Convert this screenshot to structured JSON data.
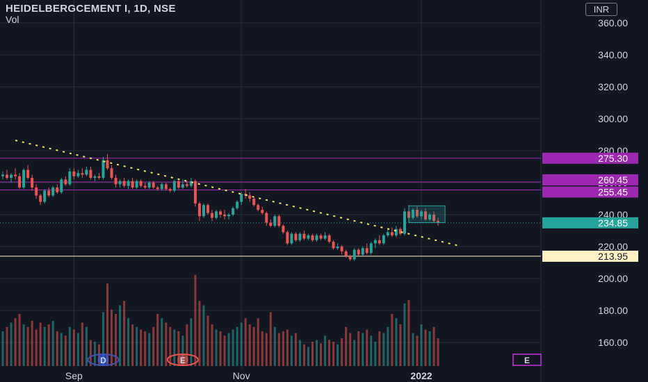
{
  "header": {
    "symbol_title": "HEIDELBERGCEMENT I, 1D, NSE",
    "volume_label": "Vol",
    "currency": "INR"
  },
  "colors": {
    "background": "#131722",
    "grid": "#2a2e39",
    "up": "#26a69a",
    "down": "#ef5350",
    "trendline": "#f5e663",
    "level_line": "#9c27b0",
    "support_line": "#fff3c4",
    "current_price": "#26a69a",
    "axis_text": "#d1d4dc"
  },
  "chart_data": {
    "type": "candlestick",
    "y_axis": {
      "ylim": [
        150,
        368
      ],
      "ticks": [
        "360.00",
        "340.00",
        "320.00",
        "300.00",
        "280.00",
        "260.00",
        "240.00",
        "220.00",
        "200.00",
        "180.00",
        "160.00"
      ]
    },
    "x_axis": {
      "tick_labels": [
        "Sep",
        "Nov",
        "2022"
      ]
    },
    "price_labels": [
      {
        "value": "275.30",
        "kind": "level"
      },
      {
        "value": "260.45",
        "kind": "level"
      },
      {
        "value": "255.45",
        "kind": "level"
      },
      {
        "value": "234.85",
        "kind": "current"
      },
      {
        "value": "213.95",
        "kind": "support"
      }
    ],
    "horizontal_lines": [
      275.3,
      260.45,
      255.45,
      213.95
    ],
    "current_price": 234.85,
    "trendline": {
      "from": {
        "bar": 3,
        "price": 286.5
      },
      "to": {
        "bar": 109,
        "price": 220.5
      }
    },
    "rectangle": {
      "from_bar": 97,
      "to_bar": 105,
      "top": 245.5,
      "bottom": 235.0
    },
    "event_markers": [
      {
        "label": "D",
        "bar": 24
      },
      {
        "label": "E",
        "bar": 43
      },
      {
        "label": "E",
        "bar": 110
      }
    ],
    "candles": [
      {
        "o": 264,
        "h": 267,
        "l": 262,
        "c": 265
      },
      {
        "o": 265,
        "h": 268,
        "l": 262,
        "c": 263
      },
      {
        "o": 263,
        "h": 266,
        "l": 260,
        "c": 265
      },
      {
        "o": 265,
        "h": 269,
        "l": 262,
        "c": 264
      },
      {
        "o": 264,
        "h": 266,
        "l": 256,
        "c": 257
      },
      {
        "o": 257,
        "h": 269,
        "l": 256,
        "c": 268
      },
      {
        "o": 268,
        "h": 271,
        "l": 262,
        "c": 263
      },
      {
        "o": 263,
        "h": 265,
        "l": 255,
        "c": 257
      },
      {
        "o": 257,
        "h": 259,
        "l": 250,
        "c": 252
      },
      {
        "o": 252,
        "h": 253,
        "l": 246,
        "c": 248
      },
      {
        "o": 248,
        "h": 256,
        "l": 247,
        "c": 255
      },
      {
        "o": 255,
        "h": 257,
        "l": 251,
        "c": 252
      },
      {
        "o": 252,
        "h": 258,
        "l": 251,
        "c": 257
      },
      {
        "o": 257,
        "h": 259,
        "l": 253,
        "c": 254
      },
      {
        "o": 254,
        "h": 263,
        "l": 253,
        "c": 262
      },
      {
        "o": 262,
        "h": 264,
        "l": 258,
        "c": 259
      },
      {
        "o": 259,
        "h": 269,
        "l": 258,
        "c": 267
      },
      {
        "o": 267,
        "h": 269,
        "l": 262,
        "c": 264
      },
      {
        "o": 264,
        "h": 268,
        "l": 263,
        "c": 266
      },
      {
        "o": 266,
        "h": 269,
        "l": 263,
        "c": 265
      },
      {
        "o": 265,
        "h": 270,
        "l": 264,
        "c": 268
      },
      {
        "o": 268,
        "h": 270,
        "l": 262,
        "c": 263
      },
      {
        "o": 263,
        "h": 265,
        "l": 261,
        "c": 264
      },
      {
        "o": 264,
        "h": 266,
        "l": 262,
        "c": 263
      },
      {
        "o": 263,
        "h": 276,
        "l": 262,
        "c": 274
      },
      {
        "o": 274,
        "h": 278,
        "l": 268,
        "c": 269
      },
      {
        "o": 269,
        "h": 271,
        "l": 262,
        "c": 263
      },
      {
        "o": 263,
        "h": 265,
        "l": 257,
        "c": 259
      },
      {
        "o": 259,
        "h": 262,
        "l": 257,
        "c": 261
      },
      {
        "o": 261,
        "h": 263,
        "l": 257,
        "c": 258
      },
      {
        "o": 258,
        "h": 262,
        "l": 256,
        "c": 261
      },
      {
        "o": 261,
        "h": 263,
        "l": 256,
        "c": 257
      },
      {
        "o": 257,
        "h": 262,
        "l": 256,
        "c": 261
      },
      {
        "o": 261,
        "h": 262,
        "l": 257,
        "c": 258
      },
      {
        "o": 258,
        "h": 260,
        "l": 256,
        "c": 257
      },
      {
        "o": 257,
        "h": 261,
        "l": 256,
        "c": 260
      },
      {
        "o": 260,
        "h": 261,
        "l": 256,
        "c": 257
      },
      {
        "o": 257,
        "h": 258,
        "l": 255,
        "c": 256
      },
      {
        "o": 256,
        "h": 260,
        "l": 255,
        "c": 259
      },
      {
        "o": 259,
        "h": 260,
        "l": 255,
        "c": 256
      },
      {
        "o": 256,
        "h": 257,
        "l": 254,
        "c": 255
      },
      {
        "o": 255,
        "h": 262,
        "l": 254,
        "c": 261
      },
      {
        "o": 261,
        "h": 262,
        "l": 256,
        "c": 257
      },
      {
        "o": 257,
        "h": 262,
        "l": 256,
        "c": 259
      },
      {
        "o": 259,
        "h": 261,
        "l": 257,
        "c": 258
      },
      {
        "o": 258,
        "h": 263,
        "l": 257,
        "c": 261
      },
      {
        "o": 261,
        "h": 262,
        "l": 245,
        "c": 247
      },
      {
        "o": 247,
        "h": 248,
        "l": 236,
        "c": 239
      },
      {
        "o": 239,
        "h": 247,
        "l": 238,
        "c": 246
      },
      {
        "o": 246,
        "h": 247,
        "l": 240,
        "c": 241
      },
      {
        "o": 241,
        "h": 243,
        "l": 236,
        "c": 238
      },
      {
        "o": 238,
        "h": 243,
        "l": 237,
        "c": 242
      },
      {
        "o": 242,
        "h": 243,
        "l": 238,
        "c": 240
      },
      {
        "o": 240,
        "h": 243,
        "l": 237,
        "c": 239
      },
      {
        "o": 239,
        "h": 241,
        "l": 237,
        "c": 240
      },
      {
        "o": 240,
        "h": 245,
        "l": 239,
        "c": 244
      },
      {
        "o": 244,
        "h": 249,
        "l": 243,
        "c": 248
      },
      {
        "o": 248,
        "h": 254,
        "l": 246,
        "c": 253
      },
      {
        "o": 253,
        "h": 256,
        "l": 250,
        "c": 252
      },
      {
        "o": 252,
        "h": 254,
        "l": 248,
        "c": 250
      },
      {
        "o": 250,
        "h": 251,
        "l": 245,
        "c": 246
      },
      {
        "o": 246,
        "h": 247,
        "l": 242,
        "c": 243
      },
      {
        "o": 243,
        "h": 245,
        "l": 240,
        "c": 241
      },
      {
        "o": 241,
        "h": 242,
        "l": 233,
        "c": 235
      },
      {
        "o": 235,
        "h": 237,
        "l": 232,
        "c": 233
      },
      {
        "o": 233,
        "h": 240,
        "l": 232,
        "c": 239
      },
      {
        "o": 239,
        "h": 240,
        "l": 232,
        "c": 233
      },
      {
        "o": 233,
        "h": 234,
        "l": 228,
        "c": 229
      },
      {
        "o": 229,
        "h": 230,
        "l": 221,
        "c": 222
      },
      {
        "o": 222,
        "h": 229,
        "l": 221,
        "c": 228
      },
      {
        "o": 228,
        "h": 229,
        "l": 223,
        "c": 224
      },
      {
        "o": 224,
        "h": 229,
        "l": 223,
        "c": 228
      },
      {
        "o": 228,
        "h": 230,
        "l": 224,
        "c": 225
      },
      {
        "o": 225,
        "h": 228,
        "l": 224,
        "c": 227
      },
      {
        "o": 227,
        "h": 228,
        "l": 223,
        "c": 224
      },
      {
        "o": 224,
        "h": 228,
        "l": 223,
        "c": 227
      },
      {
        "o": 227,
        "h": 228,
        "l": 224,
        "c": 225
      },
      {
        "o": 225,
        "h": 229,
        "l": 224,
        "c": 227
      },
      {
        "o": 227,
        "h": 228,
        "l": 222,
        "c": 223
      },
      {
        "o": 223,
        "h": 224,
        "l": 218,
        "c": 219
      },
      {
        "o": 219,
        "h": 222,
        "l": 218,
        "c": 220
      },
      {
        "o": 220,
        "h": 221,
        "l": 215,
        "c": 217
      },
      {
        "o": 217,
        "h": 218,
        "l": 213,
        "c": 214
      },
      {
        "o": 214,
        "h": 215,
        "l": 211,
        "c": 212
      },
      {
        "o": 212,
        "h": 219,
        "l": 211,
        "c": 218
      },
      {
        "o": 218,
        "h": 219,
        "l": 214,
        "c": 215
      },
      {
        "o": 215,
        "h": 220,
        "l": 214,
        "c": 219
      },
      {
        "o": 219,
        "h": 222,
        "l": 215,
        "c": 216
      },
      {
        "o": 216,
        "h": 223,
        "l": 215,
        "c": 222
      },
      {
        "o": 222,
        "h": 225,
        "l": 219,
        "c": 224
      },
      {
        "o": 224,
        "h": 227,
        "l": 221,
        "c": 222
      },
      {
        "o": 222,
        "h": 228,
        "l": 221,
        "c": 227
      },
      {
        "o": 227,
        "h": 231,
        "l": 226,
        "c": 229
      },
      {
        "o": 229,
        "h": 232,
        "l": 226,
        "c": 227
      },
      {
        "o": 227,
        "h": 233,
        "l": 226,
        "c": 231
      },
      {
        "o": 231,
        "h": 232,
        "l": 227,
        "c": 228
      },
      {
        "o": 228,
        "h": 244,
        "l": 227,
        "c": 242
      },
      {
        "o": 242,
        "h": 246,
        "l": 237,
        "c": 238
      },
      {
        "o": 238,
        "h": 244,
        "l": 237,
        "c": 243
      },
      {
        "o": 243,
        "h": 245,
        "l": 238,
        "c": 239
      },
      {
        "o": 239,
        "h": 243,
        "l": 237,
        "c": 242
      },
      {
        "o": 242,
        "h": 244,
        "l": 236,
        "c": 237
      },
      {
        "o": 237,
        "h": 241,
        "l": 236,
        "c": 240
      },
      {
        "o": 240,
        "h": 242,
        "l": 235,
        "c": 236
      },
      {
        "o": 236,
        "h": 238,
        "l": 233,
        "c": 234.85
      }
    ],
    "volumes": [
      40,
      45,
      50,
      55,
      60,
      48,
      45,
      52,
      42,
      50,
      45,
      48,
      52,
      40,
      38,
      35,
      45,
      42,
      38,
      50,
      45,
      30,
      28,
      25,
      62,
      95,
      65,
      60,
      70,
      75,
      55,
      48,
      45,
      42,
      40,
      38,
      45,
      60,
      55,
      50,
      45,
      42,
      40,
      35,
      48,
      55,
      105,
      75,
      70,
      58,
      48,
      42,
      40,
      35,
      38,
      42,
      45,
      50,
      55,
      48,
      45,
      55,
      40,
      38,
      62,
      45,
      38,
      40,
      42,
      35,
      38,
      30,
      25,
      22,
      28,
      30,
      26,
      35,
      30,
      28,
      25,
      32,
      45,
      38,
      30,
      40,
      38,
      42,
      35,
      28,
      40,
      38,
      45,
      60,
      55,
      48,
      72,
      76,
      38,
      35,
      48,
      42,
      40,
      45,
      32
    ]
  }
}
